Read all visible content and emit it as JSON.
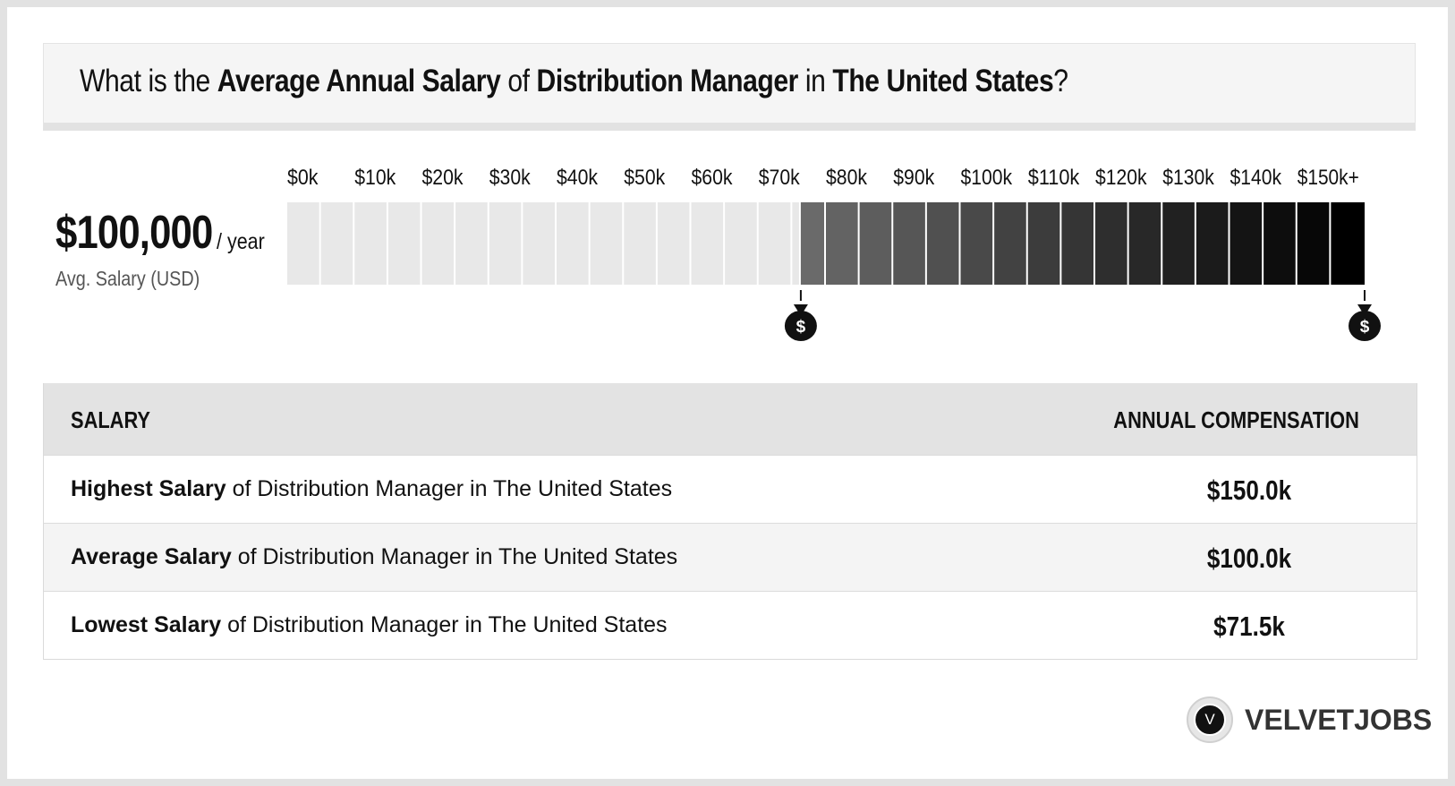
{
  "title": {
    "prefix": "What is the ",
    "bold1": "Average Annual Salary",
    "mid1": " of ",
    "bold2": "Distribution Manager",
    "mid2": " in ",
    "bold3": "The United States",
    "suffix": "?"
  },
  "summary": {
    "amount": "$100,000",
    "per": "/ year",
    "sub": "Avg. Salary (USD)"
  },
  "chart_data": {
    "type": "bar",
    "x_ticks": [
      "$0k",
      "$10k",
      "$20k",
      "$30k",
      "$40k",
      "$50k",
      "$60k",
      "$70k",
      "$80k",
      "$90k",
      "$100k",
      "$110k",
      "$120k",
      "$130k",
      "$140k",
      "$150k+"
    ],
    "xlim": [
      0,
      150
    ],
    "range": {
      "low": 71.5,
      "high": 150
    },
    "markers": [
      71.5,
      150
    ],
    "colors": {
      "empty": "#e8e8e8",
      "start": "#6a6a6a",
      "end": "#000000"
    }
  },
  "table": {
    "header_left": "SALARY",
    "header_right": "ANNUAL COMPENSATION",
    "rows": [
      {
        "bold": "Highest Salary",
        "rest": " of Distribution Manager in The United States",
        "value": "$150.0k"
      },
      {
        "bold": "Average Salary",
        "rest": " of Distribution Manager in The United States",
        "value": "$100.0k"
      },
      {
        "bold": "Lowest Salary",
        "rest": " of Distribution Manager in The United States",
        "value": "$71.5k"
      }
    ]
  },
  "brand": {
    "logo_letter": "V",
    "name": "VELVETJOBS"
  }
}
